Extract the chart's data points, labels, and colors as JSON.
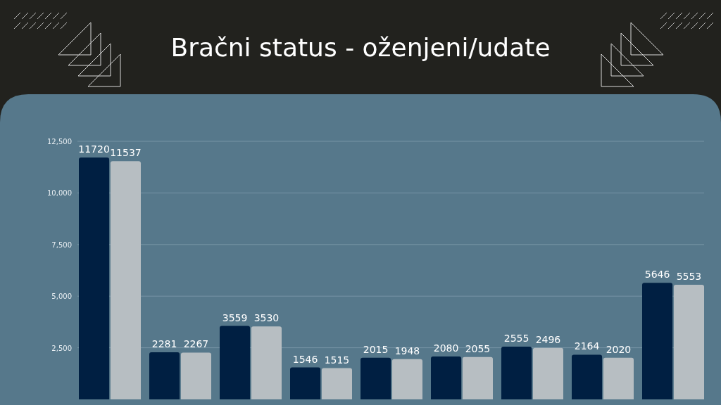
{
  "chart_data": {
    "type": "bar",
    "title": "Bračni status - oženjeni/udate",
    "categories": [
      null,
      null,
      null,
      null,
      null,
      null,
      null,
      null,
      null
    ],
    "series": [
      {
        "color": "#001f42",
        "values": [
          11720,
          2281,
          3559,
          1546,
          2015,
          2080,
          2555,
          2164,
          5646
        ]
      },
      {
        "color": "#b7bec2",
        "values": [
          11537,
          2267,
          3530,
          1515,
          1948,
          2055,
          2496,
          2020,
          5553
        ]
      }
    ],
    "ylim": [
      0,
      12500
    ],
    "yticks": [
      {
        "value": 2500,
        "label": "2,500"
      },
      {
        "value": 5000,
        "label": "5,000"
      },
      {
        "value": 7500,
        "label": "7,500"
      },
      {
        "value": 10000,
        "label": "10,000"
      },
      {
        "value": 12500,
        "label": "12,500"
      }
    ],
    "grid": "y",
    "data_labels": true,
    "tick_labels": "y"
  }
}
